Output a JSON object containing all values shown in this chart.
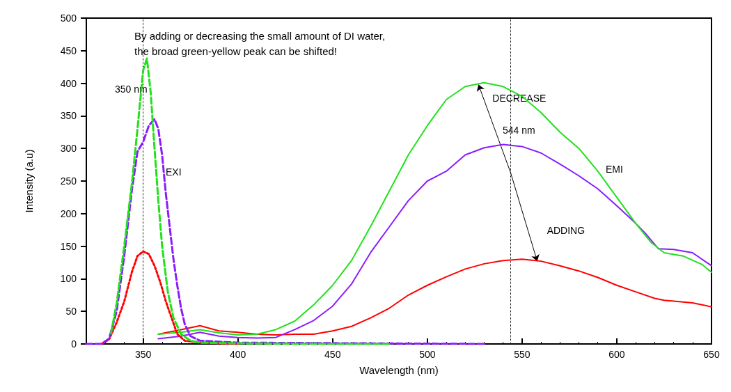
{
  "chart_data": {
    "type": "line",
    "xlabel": "Wavelength (nm)",
    "ylabel": "Intensity (a.u)",
    "xlim": [
      320,
      650
    ],
    "xticks": [
      350,
      400,
      450,
      500,
      550,
      600,
      650
    ],
    "ylim": [
      0,
      500
    ],
    "yticks": [
      0,
      50,
      100,
      150,
      200,
      250,
      300,
      350,
      400,
      450,
      500
    ],
    "grid": false,
    "marker": "none",
    "series": [
      {
        "color": "#22e01c",
        "line_style": "dashed",
        "x": [
          333,
          336,
          340,
          344,
          347,
          350,
          352,
          354,
          356,
          358,
          360,
          363,
          366,
          370,
          375,
          380,
          400,
          450,
          480
        ],
        "values": [
          16,
          62,
          150,
          245,
          330,
          420,
          438,
          385,
          300,
          220,
          150,
          80,
          40,
          15,
          5,
          2,
          1,
          0,
          0
        ]
      },
      {
        "color": "#8b1cff",
        "line_style": "dashed",
        "x": [
          320,
          328,
          332,
          336,
          340,
          344,
          347,
          350,
          353,
          356,
          358,
          360,
          362,
          364,
          366,
          368,
          370,
          372,
          375,
          380,
          400,
          530
        ],
        "values": [
          0,
          0,
          8,
          50,
          135,
          235,
          295,
          310,
          335,
          345,
          330,
          290,
          230,
          180,
          130,
          90,
          55,
          30,
          12,
          5,
          2,
          0
        ]
      },
      {
        "color": "#ff0000",
        "line_style": "dotted",
        "x": [
          328,
          332,
          336,
          340,
          344,
          347,
          350,
          353,
          356,
          359,
          362,
          365,
          368,
          372,
          380,
          400
        ],
        "values": [
          0,
          7,
          33,
          65,
          110,
          135,
          142,
          138,
          120,
          95,
          65,
          40,
          15,
          5,
          2,
          0
        ]
      },
      {
        "color": "#22e01c",
        "line_style": "solid",
        "x": [
          358,
          370,
          380,
          390,
          400,
          410,
          420,
          430,
          440,
          450,
          460,
          470,
          480,
          490,
          500,
          510,
          520,
          530,
          540,
          550,
          560,
          570,
          580,
          590,
          600,
          610,
          618,
          625,
          635,
          645,
          650
        ],
        "values": [
          15,
          18,
          22,
          17,
          14,
          15,
          22,
          35,
          60,
          90,
          128,
          180,
          235,
          290,
          335,
          375,
          395,
          401,
          395,
          380,
          355,
          325,
          300,
          265,
          225,
          185,
          156,
          140,
          135,
          122,
          110
        ]
      },
      {
        "color": "#8b1cff",
        "line_style": "solid",
        "x": [
          358,
          370,
          380,
          390,
          400,
          410,
          420,
          430,
          440,
          450,
          460,
          470,
          480,
          490,
          500,
          510,
          520,
          530,
          540,
          550,
          560,
          570,
          580,
          590,
          600,
          610,
          615,
          622,
          630,
          640,
          650
        ],
        "values": [
          8,
          12,
          18,
          12,
          10,
          9,
          10,
          22,
          36,
          58,
          92,
          140,
          180,
          220,
          250,
          265,
          290,
          301,
          306,
          303,
          293,
          276,
          258,
          238,
          212,
          185,
          170,
          146,
          145,
          140,
          120
        ]
      },
      {
        "color": "#ff0000",
        "line_style": "solid",
        "x": [
          358,
          370,
          380,
          390,
          400,
          410,
          420,
          430,
          440,
          450,
          460,
          470,
          480,
          490,
          500,
          510,
          520,
          530,
          540,
          550,
          560,
          570,
          580,
          590,
          600,
          610,
          620,
          625,
          640,
          650
        ],
        "values": [
          15,
          22,
          28,
          20,
          18,
          15,
          14,
          15,
          15,
          20,
          27,
          40,
          55,
          75,
          90,
          103,
          115,
          123,
          128,
          130,
          127,
          120,
          112,
          102,
          90,
          80,
          70,
          67,
          63,
          57
        ]
      }
    ],
    "ref_lines": [
      {
        "axis": "x",
        "value": 350,
        "line_style": "dotted"
      },
      {
        "axis": "x",
        "value": 544,
        "line_style": "dotted"
      }
    ],
    "annotations": [
      "By adding or decreasing the small amount of DI water,\nthe broad green-yellow peak can be shifted!",
      "350 nm",
      "544 nm",
      {
        "text": "DECREASE",
        "x": 527,
        "y": 398
      },
      {
        "text": "ADDING",
        "x": 558,
        "y": 127
      },
      "EXI",
      "EMI"
    ]
  }
}
